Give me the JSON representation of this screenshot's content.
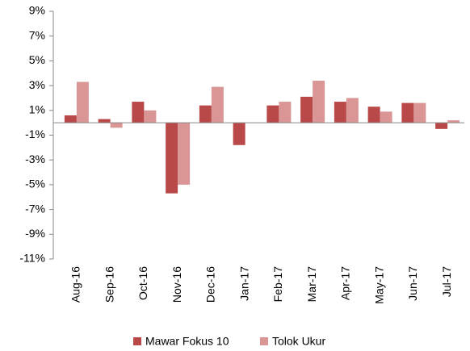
{
  "chart_data": {
    "type": "bar",
    "categories": [
      "Aug-16",
      "Sep-16",
      "Oct-16",
      "Nov-16",
      "Dec-16",
      "Jan-17",
      "Feb-17",
      "Mar-17",
      "Apr-17",
      "May-17",
      "Jun-17",
      "Jul-17"
    ],
    "series": [
      {
        "name": "Mawar Fokus 10",
        "color": "#b94848",
        "values": [
          0.6,
          0.3,
          1.7,
          -5.7,
          1.4,
          -1.8,
          1.4,
          2.1,
          1.7,
          1.3,
          1.6,
          -0.5
        ]
      },
      {
        "name": "Tolok Ukur",
        "color": "#d99694",
        "values": [
          3.3,
          -0.4,
          1.0,
          -5.0,
          2.9,
          0,
          1.7,
          3.4,
          2.0,
          0.9,
          1.6,
          0.2
        ]
      }
    ],
    "ylim": [
      -11,
      9
    ],
    "yticks": [
      {
        "value": -11,
        "label": "-11%"
      },
      {
        "value": -9,
        "label": "-9%"
      },
      {
        "value": -7,
        "label": "-7%"
      },
      {
        "value": -5,
        "label": "-5%"
      },
      {
        "value": -3,
        "label": "-3%"
      },
      {
        "value": -1,
        "label": "-1%"
      },
      {
        "value": 1,
        "label": "1%"
      },
      {
        "value": 3,
        "label": "3%"
      },
      {
        "value": 5,
        "label": "5%"
      },
      {
        "value": 7,
        "label": "7%"
      },
      {
        "value": 9,
        "label": "9%"
      }
    ],
    "legend": "bottom"
  }
}
